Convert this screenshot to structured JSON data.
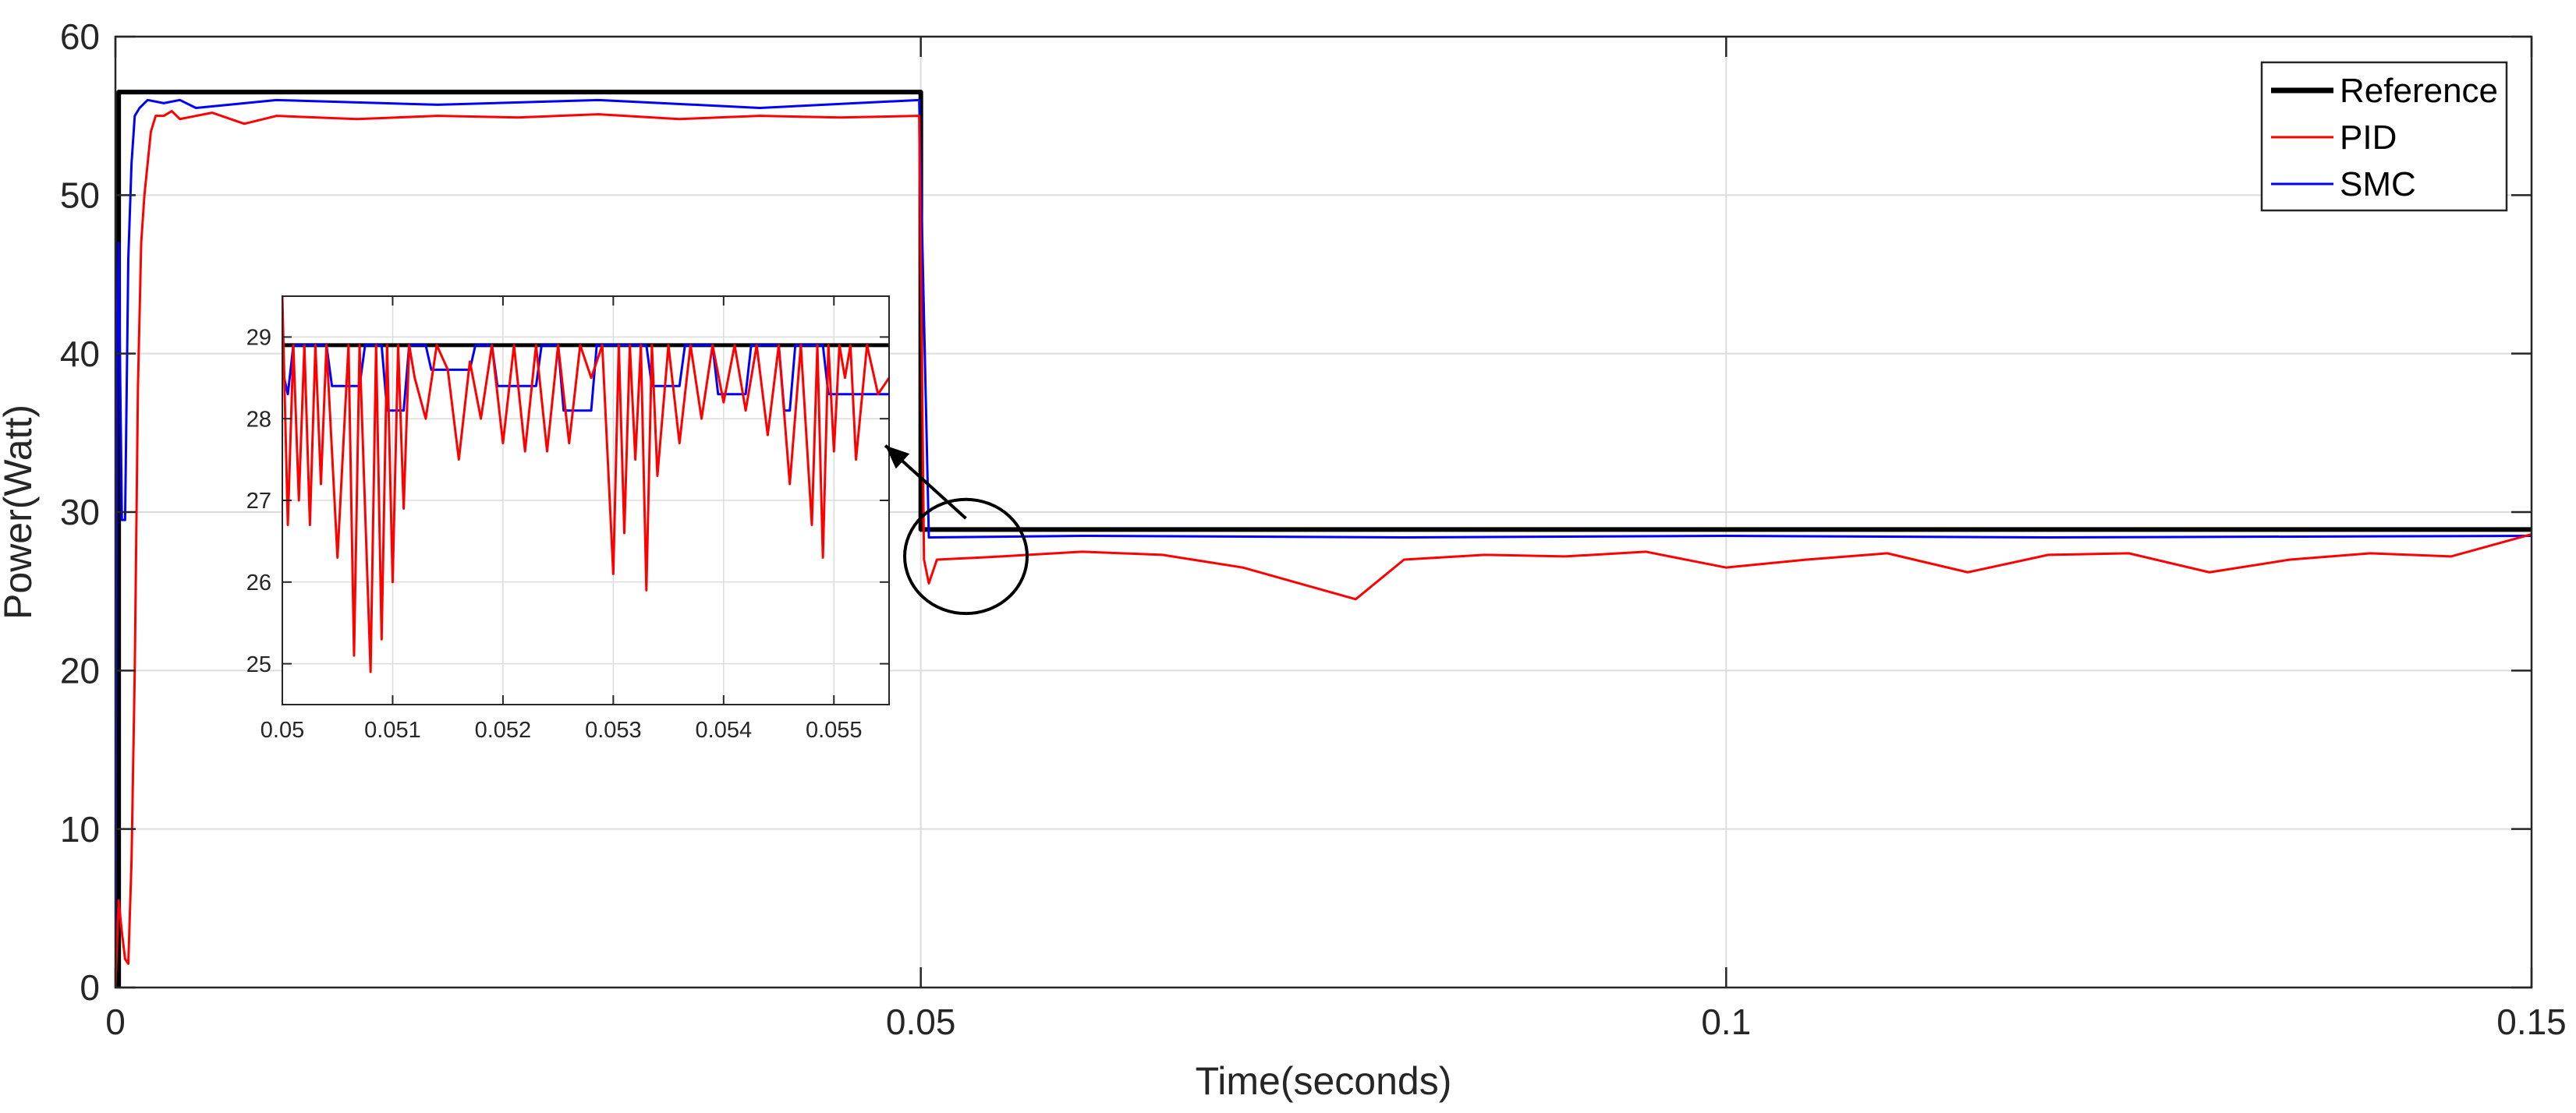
{
  "chart_data": [
    {
      "type": "line",
      "id": "main",
      "title": "",
      "xlabel": "Time(seconds)",
      "ylabel": "Power(Watt)",
      "xlim": [
        0,
        0.15
      ],
      "ylim": [
        0,
        60
      ],
      "xticks": [
        0,
        0.05,
        0.1,
        0.15
      ],
      "xtick_labels": [
        "0",
        "0.05",
        "0.1",
        "0.15"
      ],
      "yticks": [
        0,
        10,
        20,
        30,
        40,
        50,
        60
      ],
      "ytick_labels": [
        "0",
        "10",
        "20",
        "30",
        "40",
        "50",
        "60"
      ],
      "grid": true,
      "legend_position": "top-right",
      "series": [
        {
          "name": "Reference",
          "color": "#000000",
          "x": [
            0,
            0.0002,
            0.0002,
            0.05,
            0.05,
            0.15
          ],
          "y": [
            0,
            0,
            56.5,
            56.5,
            28.9,
            28.9
          ]
        },
        {
          "name": "PID",
          "color": "#ff0000",
          "x": [
            0,
            0.0002,
            0.0004,
            0.0006,
            0.0008,
            0.001,
            0.0012,
            0.0014,
            0.0016,
            0.0018,
            0.002,
            0.0022,
            0.0025,
            0.003,
            0.0035,
            0.004,
            0.005,
            0.006,
            0.008,
            0.01,
            0.015,
            0.02,
            0.025,
            0.03,
            0.035,
            0.04,
            0.045,
            0.0499,
            0.0502,
            0.0505,
            0.051,
            0.055,
            0.06,
            0.065,
            0.07,
            0.077,
            0.08,
            0.085,
            0.09,
            0.095,
            0.1,
            0.105,
            0.11,
            0.115,
            0.12,
            0.125,
            0.13,
            0.135,
            0.14,
            0.145,
            0.15
          ],
          "y": [
            0,
            5.5,
            3.5,
            1.8,
            1.5,
            8,
            20,
            38,
            47,
            50,
            52,
            54,
            55,
            55,
            55.3,
            54.8,
            55,
            55.2,
            54.5,
            55,
            54.8,
            55,
            54.9,
            55.1,
            54.8,
            55,
            54.9,
            55,
            27,
            25.5,
            27,
            27.2,
            27.5,
            27.3,
            26.5,
            24.5,
            27,
            27.3,
            27.2,
            27.5,
            26.5,
            27,
            27.4,
            26.2,
            27.3,
            27.4,
            26.2,
            27,
            27.4,
            27.2,
            28.6
          ]
        },
        {
          "name": "SMC",
          "color": "#0000ff",
          "x": [
            0,
            0.0001,
            0.0002,
            0.0004,
            0.0006,
            0.0008,
            0.001,
            0.0012,
            0.0015,
            0.002,
            0.003,
            0.004,
            0.005,
            0.01,
            0.02,
            0.03,
            0.04,
            0.0499,
            0.0505,
            0.06,
            0.08,
            0.1,
            0.12,
            0.15
          ],
          "y": [
            0,
            40,
            47,
            29.5,
            29.5,
            46,
            52,
            55,
            55.5,
            56,
            55.8,
            56,
            55.5,
            56,
            55.7,
            56,
            55.5,
            56,
            28.4,
            28.5,
            28.4,
            28.5,
            28.4,
            28.5
          ]
        }
      ]
    },
    {
      "type": "line",
      "id": "inset",
      "title": "",
      "xlabel": "",
      "ylabel": "",
      "xlim": [
        0.05,
        0.0555
      ],
      "ylim": [
        24.5,
        29.5
      ],
      "xticks": [
        0.05,
        0.051,
        0.052,
        0.053,
        0.054,
        0.055
      ],
      "xtick_labels": [
        "0.05",
        "0.051",
        "0.052",
        "0.053",
        "0.054",
        "0.055"
      ],
      "yticks": [
        25,
        26,
        27,
        28,
        29
      ],
      "ytick_labels": [
        "25",
        "26",
        "27",
        "28",
        "29"
      ],
      "grid": true,
      "series": [
        {
          "name": "Reference",
          "color": "#000000",
          "x": [
            0.05,
            0.0555
          ],
          "y": [
            28.9,
            28.9
          ]
        },
        {
          "name": "PID",
          "color": "#ff0000",
          "x": [
            0.05,
            0.05005,
            0.0501,
            0.05015,
            0.0502,
            0.05025,
            0.0503,
            0.05035,
            0.0504,
            0.0505,
            0.0506,
            0.05065,
            0.0507,
            0.0508,
            0.05085,
            0.0509,
            0.05095,
            0.051,
            0.05105,
            0.0511,
            0.05115,
            0.0512,
            0.0513,
            0.0514,
            0.0515,
            0.0516,
            0.0517,
            0.0518,
            0.0519,
            0.052,
            0.0521,
            0.0522,
            0.0523,
            0.0524,
            0.0525,
            0.0526,
            0.0527,
            0.0528,
            0.0529,
            0.053,
            0.05305,
            0.0531,
            0.05315,
            0.0532,
            0.05325,
            0.0533,
            0.05335,
            0.0534,
            0.0535,
            0.0536,
            0.0537,
            0.0538,
            0.0539,
            0.054,
            0.0541,
            0.0542,
            0.0543,
            0.0544,
            0.0545,
            0.0546,
            0.0547,
            0.0548,
            0.05485,
            0.0549,
            0.05495,
            0.055,
            0.05505,
            0.0551,
            0.05515,
            0.0552,
            0.0553,
            0.0554,
            0.0555
          ],
          "y": [
            29.5,
            26.7,
            28.9,
            27.0,
            28.9,
            26.7,
            28.9,
            27.2,
            28.9,
            26.3,
            28.9,
            25.1,
            28.9,
            24.9,
            28.9,
            25.3,
            28.9,
            26.0,
            28.9,
            26.9,
            28.9,
            28.5,
            28.0,
            28.9,
            28.6,
            27.5,
            28.7,
            28.0,
            28.9,
            27.7,
            28.9,
            27.6,
            28.9,
            27.6,
            28.9,
            27.7,
            28.9,
            28.5,
            28.9,
            26.1,
            28.9,
            26.6,
            28.9,
            27.5,
            28.9,
            25.9,
            28.9,
            27.3,
            28.9,
            27.7,
            28.9,
            28.0,
            28.9,
            28.2,
            28.9,
            28.1,
            28.9,
            27.8,
            28.9,
            27.2,
            28.9,
            26.7,
            28.9,
            26.3,
            28.9,
            27.6,
            28.9,
            28.5,
            28.9,
            27.5,
            28.9,
            28.3,
            28.5
          ]
        },
        {
          "name": "SMC",
          "color": "#0000ff",
          "x": [
            0.05,
            0.05005,
            0.0501,
            0.0504,
            0.05045,
            0.0507,
            0.05075,
            0.0509,
            0.05095,
            0.0511,
            0.05115,
            0.0513,
            0.05135,
            0.0517,
            0.05175,
            0.0519,
            0.05195,
            0.0523,
            0.05235,
            0.0525,
            0.05255,
            0.0528,
            0.05285,
            0.0529,
            0.05295,
            0.0533,
            0.05335,
            0.0536,
            0.05365,
            0.0539,
            0.05395,
            0.0542,
            0.05425,
            0.0545,
            0.05455,
            0.0546,
            0.05465,
            0.0549,
            0.05495,
            0.0555
          ],
          "y": [
            28.6,
            28.3,
            28.9,
            28.9,
            28.4,
            28.4,
            28.9,
            28.9,
            28.1,
            28.1,
            28.9,
            28.9,
            28.6,
            28.6,
            28.9,
            28.9,
            28.4,
            28.4,
            28.9,
            28.9,
            28.1,
            28.1,
            28.9,
            28.9,
            28.9,
            28.9,
            28.4,
            28.4,
            28.9,
            28.9,
            28.3,
            28.3,
            28.9,
            28.9,
            28.1,
            28.1,
            28.9,
            28.9,
            28.3,
            28.3
          ]
        }
      ]
    }
  ],
  "annotation": {
    "ellipse_center": [
      0.0528,
      27.2
    ],
    "ellipse_radius": [
      0.0038,
      3.6
    ],
    "arrow_from": [
      0.0528,
      29.6
    ],
    "arrow_to": [
      0.0478,
      34.2
    ]
  }
}
